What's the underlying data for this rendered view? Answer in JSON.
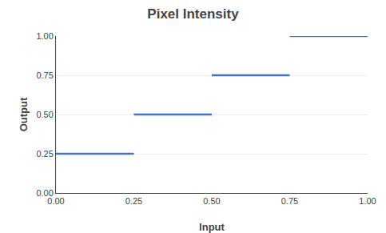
{
  "chart_data": {
    "type": "line",
    "title": "Pixel Intensity",
    "xlabel": "Input",
    "ylabel": "Output",
    "x": [
      0,
      0.25,
      0.25,
      0.25,
      0.5,
      0.5,
      0.5,
      0.75,
      0.75,
      0.75,
      1.0
    ],
    "values": [
      0.25,
      0.25,
      null,
      0.5,
      0.5,
      null,
      0.75,
      0.75,
      null,
      1.0,
      1.0
    ],
    "color": "#4472C4",
    "xlim": [
      0,
      1
    ],
    "ylim": [
      0,
      1
    ],
    "xticks": [
      {
        "value": 0,
        "label": "0.00"
      },
      {
        "value": 0.25,
        "label": "0.25"
      },
      {
        "value": 0.5,
        "label": "0.50"
      },
      {
        "value": 0.75,
        "label": "0.75"
      },
      {
        "value": 1,
        "label": "1.00"
      }
    ],
    "yticks": [
      {
        "value": 0,
        "label": "0.00"
      },
      {
        "value": 0.25,
        "label": "0.25"
      },
      {
        "value": 0.5,
        "label": "0.50"
      },
      {
        "value": 0.75,
        "label": "0.75"
      },
      {
        "value": 1,
        "label": "1.00"
      }
    ],
    "grid": true
  }
}
